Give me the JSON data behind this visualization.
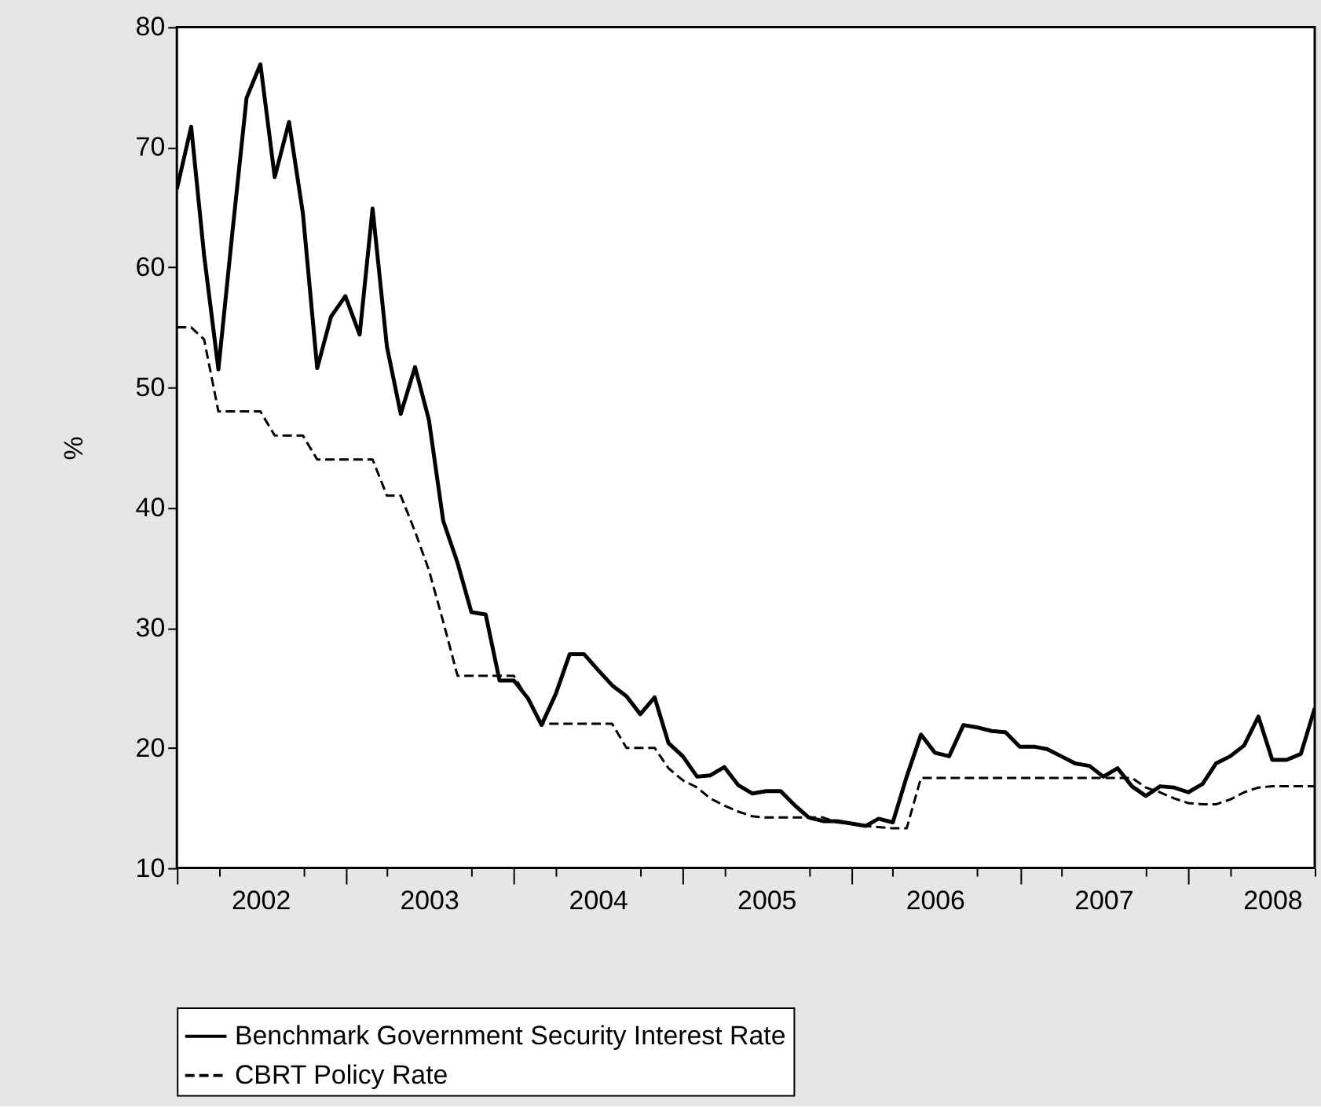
{
  "chart_data": {
    "type": "line",
    "ylabel": "%",
    "x": [
      "2002-01",
      "2002-02",
      "2002-03",
      "2002-04",
      "2002-05",
      "2002-06",
      "2002-07",
      "2002-08",
      "2002-09",
      "2002-10",
      "2002-11",
      "2002-12",
      "2003-01",
      "2003-02",
      "2003-03",
      "2003-04",
      "2003-05",
      "2003-06",
      "2003-07",
      "2003-08",
      "2003-09",
      "2003-10",
      "2003-11",
      "2003-12",
      "2004-01",
      "2004-02",
      "2004-03",
      "2004-04",
      "2004-05",
      "2004-06",
      "2004-07",
      "2004-08",
      "2004-09",
      "2004-10",
      "2004-11",
      "2004-12",
      "2005-01",
      "2005-02",
      "2005-03",
      "2005-04",
      "2005-05",
      "2005-06",
      "2005-07",
      "2005-08",
      "2005-09",
      "2005-10",
      "2005-11",
      "2005-12",
      "2006-01",
      "2006-02",
      "2006-03",
      "2006-04",
      "2006-05",
      "2006-06",
      "2006-07",
      "2006-08",
      "2006-09",
      "2006-10",
      "2006-11",
      "2006-12",
      "2007-01",
      "2007-02",
      "2007-03",
      "2007-04",
      "2007-05",
      "2007-06",
      "2007-07",
      "2007-08",
      "2007-09",
      "2007-10",
      "2007-11",
      "2007-12",
      "2008-01",
      "2008-02",
      "2008-03",
      "2008-04",
      "2008-05",
      "2008-06",
      "2008-07",
      "2008-08",
      "2008-09",
      "2008-10"
    ],
    "series": [
      {
        "name": "Benchmark Government Security Interest Rate",
        "color": "#000000",
        "line_style": "solid",
        "values": [
          66.5,
          71.7,
          61,
          51.5,
          62.8,
          74.1,
          76.9,
          67.5,
          72.1,
          64.5,
          51.6,
          55.9,
          57.6,
          54.4,
          64.9,
          53.4,
          47.8,
          51.7,
          47.3,
          38.9,
          35.4,
          31.3,
          31.1,
          25.6,
          25.6,
          24.1,
          21.9,
          24.5,
          27.8,
          27.8,
          26.5,
          25.2,
          24.3,
          22.8,
          24.2,
          20.4,
          19.3,
          17.6,
          17.7,
          18.4,
          16.9,
          16.2,
          16.4,
          16.4,
          15.2,
          14.2,
          13.9,
          13.9,
          13.7,
          13.5,
          14.1,
          13.8,
          17.6,
          21.1,
          19.6,
          19.3,
          21.9,
          21.7,
          21.4,
          21.3,
          20.1,
          20.1,
          19.9,
          19.3,
          18.7,
          18.5,
          17.6,
          18.3,
          16.8,
          16.0,
          16.8,
          16.7,
          16.3,
          17.0,
          18.7,
          19.3,
          20.2,
          22.6,
          19.0,
          19.0,
          19.5,
          23.3
        ]
      },
      {
        "name": "CBRT Policy Rate",
        "color": "#000000",
        "line_style": "dashed",
        "values": [
          55,
          55,
          54,
          48,
          48,
          48,
          48,
          46,
          46,
          46,
          44,
          44,
          44,
          44,
          44,
          41,
          41,
          38,
          34.8,
          30.5,
          26,
          26,
          26,
          26,
          26,
          24,
          22,
          22,
          22,
          22,
          22,
          22,
          20,
          20,
          20,
          18.3,
          17.3,
          16.7,
          15.8,
          15.2,
          14.7,
          14.3,
          14.2,
          14.2,
          14.2,
          14.2,
          14.2,
          13.8,
          13.7,
          13.5,
          13.4,
          13.3,
          13.3,
          17.5,
          17.5,
          17.5,
          17.5,
          17.5,
          17.5,
          17.5,
          17.5,
          17.5,
          17.5,
          17.5,
          17.5,
          17.5,
          17.5,
          17.5,
          17.5,
          16.7,
          16.3,
          15.8,
          15.4,
          15.3,
          15.3,
          15.7,
          16.3,
          16.7,
          16.8,
          16.8,
          16.8,
          16.8
        ]
      }
    ],
    "xlim": [
      "2002-01",
      "2008-10"
    ],
    "xticks": [
      {
        "value": "2002-01",
        "label": null
      },
      {
        "value": "2002-04",
        "label": null
      },
      {
        "value": "2002-07",
        "label": "2002"
      },
      {
        "value": "2002-10",
        "label": null
      },
      {
        "value": "2003-01",
        "label": null
      },
      {
        "value": "2003-04",
        "label": null
      },
      {
        "value": "2003-07",
        "label": "2003"
      },
      {
        "value": "2003-10",
        "label": null
      },
      {
        "value": "2004-01",
        "label": null
      },
      {
        "value": "2004-04",
        "label": null
      },
      {
        "value": "2004-07",
        "label": "2004"
      },
      {
        "value": "2004-10",
        "label": null
      },
      {
        "value": "2005-01",
        "label": null
      },
      {
        "value": "2005-04",
        "label": null
      },
      {
        "value": "2005-07",
        "label": "2005"
      },
      {
        "value": "2005-10",
        "label": null
      },
      {
        "value": "2006-01",
        "label": null
      },
      {
        "value": "2006-04",
        "label": null
      },
      {
        "value": "2006-07",
        "label": "2006"
      },
      {
        "value": "2006-10",
        "label": null
      },
      {
        "value": "2007-01",
        "label": null
      },
      {
        "value": "2007-04",
        "label": null
      },
      {
        "value": "2007-07",
        "label": "2007"
      },
      {
        "value": "2007-10",
        "label": null
      },
      {
        "value": "2008-01",
        "label": null
      },
      {
        "value": "2008-04",
        "label": null
      },
      {
        "value": "2008-07",
        "label": "2008"
      },
      {
        "value": "2008-10",
        "label": null
      }
    ],
    "ylim": [
      10,
      80
    ],
    "yticks": [
      10,
      20,
      30,
      40,
      50,
      60,
      70,
      80
    ],
    "grid": false,
    "legend": "bottom"
  }
}
